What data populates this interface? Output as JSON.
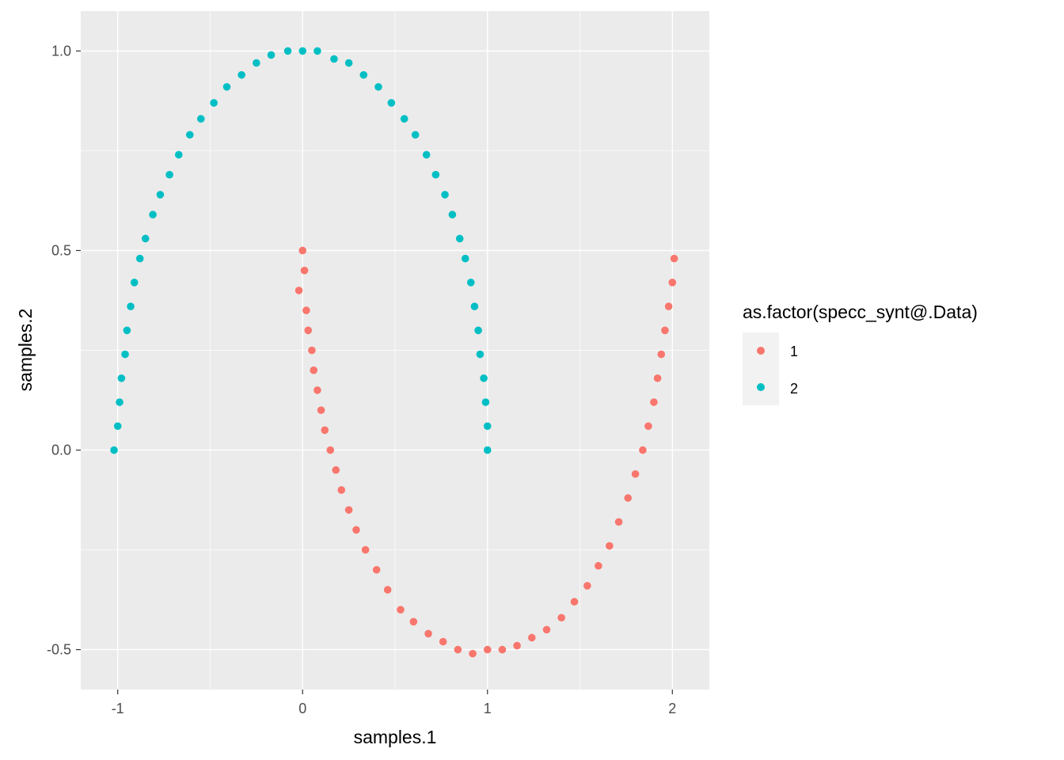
{
  "chart_data": {
    "type": "scatter",
    "title": "",
    "xlabel": "samples.1",
    "ylabel": "samples.2",
    "xlim": [
      -1.2,
      2.2
    ],
    "ylim": [
      -0.6,
      1.1
    ],
    "x_ticks": [
      -1,
      0,
      1,
      2
    ],
    "x_tick_labels": [
      "-1",
      "0",
      "1",
      "2"
    ],
    "y_ticks": [
      -0.5,
      0.0,
      0.5,
      1.0
    ],
    "y_tick_labels": [
      "-0.5",
      "0.0",
      "0.5",
      "1.0"
    ],
    "grid": true,
    "legend": {
      "title": "as.factor(specc_synt@.Data)",
      "placement": "right"
    },
    "series": [
      {
        "name": "1",
        "color": "#F8766D",
        "shape": "lower half-moon, centre (1, 0), radius 1",
        "points": [
          [
            0.0,
            0.5
          ],
          [
            0.01,
            0.45
          ],
          [
            -0.02,
            0.4
          ],
          [
            0.02,
            0.35
          ],
          [
            0.03,
            0.3
          ],
          [
            0.05,
            0.25
          ],
          [
            0.06,
            0.2
          ],
          [
            0.08,
            0.15
          ],
          [
            0.1,
            0.1
          ],
          [
            0.12,
            0.05
          ],
          [
            0.15,
            0.0
          ],
          [
            0.18,
            -0.05
          ],
          [
            0.21,
            -0.1
          ],
          [
            0.25,
            -0.15
          ],
          [
            0.29,
            -0.2
          ],
          [
            0.34,
            -0.25
          ],
          [
            0.4,
            -0.3
          ],
          [
            0.46,
            -0.35
          ],
          [
            0.53,
            -0.4
          ],
          [
            0.6,
            -0.43
          ],
          [
            0.68,
            -0.46
          ],
          [
            0.76,
            -0.48
          ],
          [
            0.84,
            -0.5
          ],
          [
            0.92,
            -0.51
          ],
          [
            1.0,
            -0.5
          ],
          [
            1.08,
            -0.5
          ],
          [
            1.16,
            -0.49
          ],
          [
            1.24,
            -0.47
          ],
          [
            1.32,
            -0.45
          ],
          [
            1.4,
            -0.42
          ],
          [
            1.47,
            -0.38
          ],
          [
            1.54,
            -0.34
          ],
          [
            1.6,
            -0.29
          ],
          [
            1.66,
            -0.24
          ],
          [
            1.71,
            -0.18
          ],
          [
            1.76,
            -0.12
          ],
          [
            1.8,
            -0.06
          ],
          [
            1.84,
            0.0
          ],
          [
            1.87,
            0.06
          ],
          [
            1.9,
            0.12
          ],
          [
            1.92,
            0.18
          ],
          [
            1.94,
            0.24
          ],
          [
            1.96,
            0.3
          ],
          [
            1.98,
            0.36
          ],
          [
            2.0,
            0.42
          ],
          [
            2.01,
            0.48
          ]
        ]
      },
      {
        "name": "2",
        "color": "#00BFC4",
        "shape": "upper half-moon, centre (0, 0), radius 1",
        "points": [
          [
            -1.02,
            0.0
          ],
          [
            -1.0,
            0.06
          ],
          [
            -0.99,
            0.12
          ],
          [
            -0.98,
            0.18
          ],
          [
            -0.96,
            0.24
          ],
          [
            -0.95,
            0.3
          ],
          [
            -0.93,
            0.36
          ],
          [
            -0.91,
            0.42
          ],
          [
            -0.88,
            0.48
          ],
          [
            -0.85,
            0.53
          ],
          [
            -0.81,
            0.59
          ],
          [
            -0.77,
            0.64
          ],
          [
            -0.72,
            0.69
          ],
          [
            -0.67,
            0.74
          ],
          [
            -0.61,
            0.79
          ],
          [
            -0.55,
            0.83
          ],
          [
            -0.48,
            0.87
          ],
          [
            -0.41,
            0.91
          ],
          [
            -0.33,
            0.94
          ],
          [
            -0.25,
            0.97
          ],
          [
            -0.17,
            0.99
          ],
          [
            -0.08,
            1.0
          ],
          [
            0.0,
            1.0
          ],
          [
            0.08,
            1.0
          ],
          [
            0.17,
            0.98
          ],
          [
            0.25,
            0.97
          ],
          [
            0.33,
            0.94
          ],
          [
            0.41,
            0.91
          ],
          [
            0.48,
            0.87
          ],
          [
            0.55,
            0.83
          ],
          [
            0.61,
            0.79
          ],
          [
            0.67,
            0.74
          ],
          [
            0.72,
            0.69
          ],
          [
            0.77,
            0.64
          ],
          [
            0.81,
            0.59
          ],
          [
            0.85,
            0.53
          ],
          [
            0.88,
            0.48
          ],
          [
            0.91,
            0.42
          ],
          [
            0.93,
            0.36
          ],
          [
            0.95,
            0.3
          ],
          [
            0.96,
            0.24
          ],
          [
            0.98,
            0.18
          ],
          [
            0.99,
            0.12
          ],
          [
            1.0,
            0.06
          ],
          [
            1.0,
            0.0
          ]
        ]
      }
    ]
  }
}
